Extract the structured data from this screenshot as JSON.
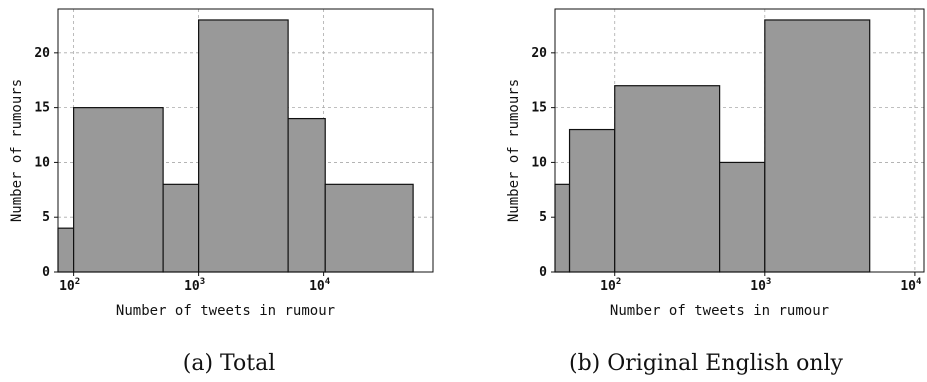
{
  "figure": {
    "captions": [
      "(a) Total",
      "(b) Original English only"
    ]
  },
  "chart_data": [
    {
      "type": "bar",
      "subtype": "histogram",
      "xscale": "log",
      "xlabel": "Number of tweets in rumour",
      "ylabel": "Number of rumours",
      "xlim": [
        75,
        75000
      ],
      "ylim": [
        0,
        24
      ],
      "yticks": [
        0,
        5,
        10,
        15,
        20
      ],
      "xticks": [
        {
          "value": 100,
          "base": "10",
          "exp": "2"
        },
        {
          "value": 1000,
          "base": "10",
          "exp": "3"
        },
        {
          "value": 10000,
          "base": "10",
          "exp": "4"
        }
      ],
      "grid": true,
      "bins": [
        {
          "x0": 75,
          "x1": 100,
          "value": 4
        },
        {
          "x0": 100,
          "x1": 520,
          "value": 15
        },
        {
          "x0": 520,
          "x1": 1000,
          "value": 8
        },
        {
          "x0": 1000,
          "x1": 5200,
          "value": 23
        },
        {
          "x0": 5200,
          "x1": 10300,
          "value": 14
        },
        {
          "x0": 10300,
          "x1": 52000,
          "value": 8
        }
      ],
      "bar_color": "#999999",
      "edge_color": "#111111"
    },
    {
      "type": "bar",
      "subtype": "histogram",
      "xscale": "log",
      "xlabel": "Number of tweets in rumour",
      "ylabel": "Number of rumours",
      "xlim": [
        40,
        11500
      ],
      "ylim": [
        0,
        24
      ],
      "yticks": [
        0,
        5,
        10,
        15,
        20
      ],
      "xticks": [
        {
          "value": 100,
          "base": "10",
          "exp": "2"
        },
        {
          "value": 1000,
          "base": "10",
          "exp": "3"
        },
        {
          "value": 10000,
          "base": "10",
          "exp": "4"
        }
      ],
      "grid": true,
      "bins": [
        {
          "x0": 40,
          "x1": 50,
          "value": 8
        },
        {
          "x0": 50,
          "x1": 100,
          "value": 13
        },
        {
          "x0": 100,
          "x1": 500,
          "value": 17
        },
        {
          "x0": 500,
          "x1": 1000,
          "value": 10
        },
        {
          "x0": 1000,
          "x1": 5000,
          "value": 23
        }
      ],
      "bar_color": "#999999",
      "edge_color": "#111111"
    }
  ]
}
